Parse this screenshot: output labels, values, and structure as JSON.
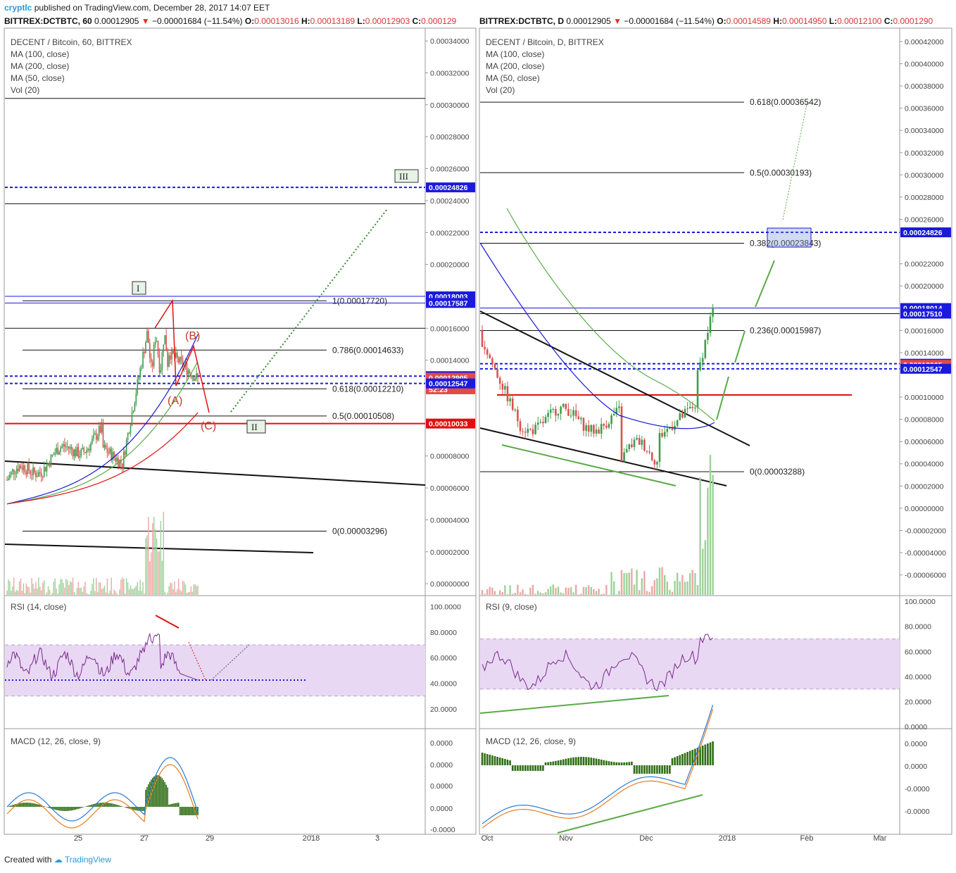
{
  "header": {
    "brand": "cryptlc",
    "published": "published on TradingView.com, December 28, 2017 14:07 EET"
  },
  "left_quote": {
    "symbol": "BITTREX:DCTBTC, 60",
    "last": "0.00012905",
    "change": "−0.00001684 (−11.54%)",
    "open": "0.00013016",
    "high": "0.00013189",
    "low": "0.00012903",
    "close": "0.000129"
  },
  "right_quote": {
    "symbol": "BITTREX:DCTBTC, D",
    "last": "0.00012905",
    "change": "−0.00001684 (−11.54%)",
    "open": "0.00014589",
    "high": "0.00014950",
    "low": "0.00012100",
    "close": "0.0001290"
  },
  "footer": {
    "created": "Created with",
    "brand": "TradingView"
  },
  "chart_data": [
    {
      "type": "line",
      "timeframe": "60",
      "legend": [
        "DECENT / Bitcoin, 60, BITTREX",
        "MA (100, close)",
        "MA (200, close)",
        "MA (50, close)",
        "Vol (20)"
      ],
      "price_axis": [
        "0.00034000",
        "0.00032000",
        "0.00030000",
        "0.00028000",
        "0.00026000",
        "0.00024000",
        "0.00022000",
        "0.00020000",
        "0.00016000",
        "0.00014000",
        "0.00010000",
        "0.00008000",
        "0.00006000",
        "0.00004000",
        "0.00002000",
        "0.00000000"
      ],
      "price_range": [
        0.0,
        0.00035
      ],
      "price_tags": [
        {
          "label": "0.00024826",
          "value": 0.00024826,
          "color": "#1a1adb"
        },
        {
          "label": "0.00018003",
          "value": 0.00018003,
          "color": "#1a1adb"
        },
        {
          "label": "0.00017587",
          "value": 0.00017587,
          "color": "#1a1adb"
        },
        {
          "label": "0.00013002",
          "value": 0.00013002,
          "color": "#1a1adb"
        },
        {
          "label": "0.00012905",
          "value": 0.00012905,
          "color": "#e04a4a"
        },
        {
          "label": "52:23",
          "value": 0.0001218,
          "color": "#e04a4a"
        },
        {
          "label": "0.00012547",
          "value": 0.00012547,
          "color": "#1a1adb"
        },
        {
          "label": "0.00010033",
          "value": 0.00010033,
          "color": "#e01010"
        }
      ],
      "fib_levels": [
        {
          "label": "1(0.00017720)",
          "value": 0.0001772
        },
        {
          "label": "0.786(0.00014633)",
          "value": 0.00014633
        },
        {
          "label": "0.618(0.00012210)",
          "value": 0.0001221
        },
        {
          "label": "0.5(0.00010508)",
          "value": 0.00010508
        },
        {
          "label": "0(0.00003296)",
          "value": 3.296e-05
        }
      ],
      "wave_labels": [
        "I",
        "II",
        "III",
        "(A)",
        "(B)",
        "(C)"
      ],
      "x_ticks": [
        "25",
        "27",
        "29",
        "2018",
        "3"
      ],
      "rsi": {
        "label": "RSI (14, close)",
        "axis": [
          "100.0000",
          "80.0000",
          "60.0000",
          "40.0000",
          "20.0000"
        ],
        "range": [
          0,
          100
        ],
        "band": [
          30,
          70
        ]
      },
      "macd": {
        "label": "MACD (12, 26, close, 9)",
        "axis": [
          "0.0000",
          "0.0000",
          "0.0000",
          "0.0000",
          "-0.0000"
        ]
      }
    },
    {
      "type": "line",
      "timeframe": "D",
      "legend": [
        "DECENT / Bitcoin, D, BITTREX",
        "MA (100, close)",
        "MA (200, close)",
        "MA (50, close)",
        "Vol (20)"
      ],
      "price_axis": [
        "0.00042000",
        "0.00040000",
        "0.00038000",
        "0.00036000",
        "0.00034000",
        "0.00032000",
        "0.00030000",
        "0.00028000",
        "0.00026000",
        "0.00022000",
        "0.00020000",
        "0.00016000",
        "0.00014000",
        "0.00010000",
        "0.00008000",
        "0.00006000",
        "0.00004000",
        "0.00002000",
        "0.00000000",
        "-0.00002000",
        "-0.00004000",
        "-0.00006000"
      ],
      "price_range": [
        -8e-05,
        0.00043
      ],
      "price_tags": [
        {
          "label": "0.00024826",
          "value": 0.00024826,
          "color": "#1a1adb"
        },
        {
          "label": "0.00018014",
          "value": 0.00018014,
          "color": "#1a1adb"
        },
        {
          "label": "0.00017510",
          "value": 0.0001751,
          "color": "#1a1adb"
        },
        {
          "label": "0.00013002",
          "value": 0.00013002,
          "color": "#1a1adb"
        },
        {
          "label": "0.00012905",
          "value": 0.00012905,
          "color": "#e04a4a"
        },
        {
          "label": "0.00012547",
          "value": 0.00012547,
          "color": "#1a1adb"
        }
      ],
      "fib_levels": [
        {
          "label": "0.618(0.00036542)",
          "value": 0.00036542
        },
        {
          "label": "0.5(0.00030193)",
          "value": 0.00030193
        },
        {
          "label": "0.382(0.00023843)",
          "value": 0.00023843
        },
        {
          "label": "0.236(0.00015987)",
          "value": 0.00015987
        },
        {
          "label": "0(0.00003288)",
          "value": 3.288e-05
        }
      ],
      "x_ticks": [
        "Oct",
        "Nov",
        "Dec",
        "2018",
        "Feb",
        "Mar"
      ],
      "rsi": {
        "label": "RSI (9, close)",
        "axis": [
          "100.0000",
          "80.0000",
          "60.0000",
          "40.0000",
          "20.0000",
          "0.0000"
        ],
        "range": [
          0,
          100
        ],
        "band": [
          30,
          70
        ]
      },
      "macd": {
        "label": "MACD (12, 26, close, 9)",
        "axis": [
          "0.0000",
          "0.0000",
          "-0.0000",
          "-0.0000"
        ]
      }
    }
  ]
}
